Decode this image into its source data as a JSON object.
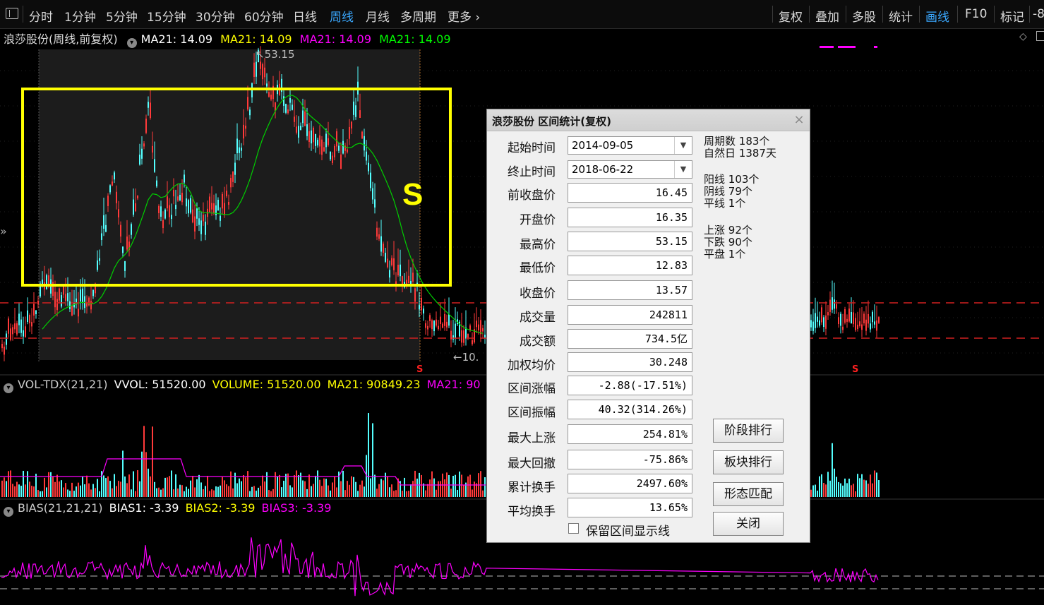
{
  "toolbar": {
    "left_items": [
      {
        "label": "分时",
        "active": false
      },
      {
        "label": "1分钟",
        "active": false
      },
      {
        "label": "5分钟",
        "active": false
      },
      {
        "label": "15分钟",
        "active": false
      },
      {
        "label": "30分钟",
        "active": false
      },
      {
        "label": "60分钟",
        "active": false
      },
      {
        "label": "日线",
        "active": false
      },
      {
        "label": "周线",
        "active": true
      },
      {
        "label": "月线",
        "active": false
      },
      {
        "label": "多周期",
        "active": false
      },
      {
        "label": "更多",
        "active": false
      }
    ],
    "right_items": [
      {
        "label": "复权",
        "active": false
      },
      {
        "label": "叠加",
        "active": false
      },
      {
        "label": "多股",
        "active": false
      },
      {
        "label": "统计",
        "active": false
      },
      {
        "label": "画线",
        "active": true
      },
      {
        "label": "F10",
        "active": false
      },
      {
        "label": "标记",
        "active": false
      },
      {
        "label": "-8",
        "active": false
      }
    ]
  },
  "price_panel": {
    "title": "浪莎股份(周线,前复权)",
    "ma_items": [
      {
        "label": "MA21: 14.09",
        "color": "#ffffff"
      },
      {
        "label": "MA21: 14.09",
        "color": "#ffff00"
      },
      {
        "label": "MA21: 14.09",
        "color": "#ff00ff"
      },
      {
        "label": "MA21: 14.09",
        "color": "#00ff00"
      }
    ],
    "high_marker": "53.15",
    "low_marker": "10.",
    "annotation_letter": "S",
    "side_arrow": "»",
    "s_signal": "S"
  },
  "volume_panel": {
    "items": [
      {
        "label": "VOL-TDX(21,21)",
        "color": "#cccccc"
      },
      {
        "label": "VVOL: 51520.00",
        "color": "#ffffff"
      },
      {
        "label": "VOLUME: 51520.00",
        "color": "#ffff00"
      },
      {
        "label": "MA21: 90849.23",
        "color": "#ffff00"
      },
      {
        "label": "MA21: 90",
        "color": "#ff00ff"
      }
    ]
  },
  "bias_panel": {
    "items": [
      {
        "label": "BIAS(21,21,21)",
        "color": "#cccccc"
      },
      {
        "label": "BIAS1: -3.39",
        "color": "#ffffff"
      },
      {
        "label": "BIAS2: -3.39",
        "color": "#ffff00"
      },
      {
        "label": "BIAS3: -3.39",
        "color": "#ff00ff"
      }
    ]
  },
  "colors": {
    "up": "#ff3a3a",
    "down": "#54ffff",
    "ma": "#00d000",
    "volma": "#ff00ff",
    "box": "#ffff00",
    "dash": "#d02020"
  },
  "dialog": {
    "title": "浪莎股份 区间统计(复权)",
    "close": "×",
    "start_label": "起始时间",
    "start_value": "2014-09-05",
    "end_label": "终止时间",
    "end_value": "2018-06-22",
    "rows": [
      {
        "label": "前收盘价",
        "value": "16.45"
      },
      {
        "label": "开盘价",
        "value": "16.35"
      },
      {
        "label": "最高价",
        "value": "53.15"
      },
      {
        "label": "最低价",
        "value": "12.83"
      },
      {
        "label": "收盘价",
        "value": "13.57"
      },
      {
        "label": "成交量",
        "value": "242811"
      },
      {
        "label": "成交额",
        "value": "734.5亿"
      },
      {
        "label": "加权均价",
        "value": "30.248"
      },
      {
        "label": "区间涨幅",
        "value": "-2.88(-17.51%)"
      },
      {
        "label": "区间振幅",
        "value": "40.32(314.26%)"
      },
      {
        "label": "最大上涨",
        "value": "254.81%"
      },
      {
        "label": "最大回撤",
        "value": "-75.86%"
      },
      {
        "label": "累计换手",
        "value": "2497.60%"
      },
      {
        "label": "平均换手",
        "value": "13.65%"
      }
    ],
    "stats": [
      {
        "label": "周期数",
        "value": "183个"
      },
      {
        "label": "自然日",
        "value": "1387天"
      },
      {
        "label": "阳线",
        "value": "103个"
      },
      {
        "label": "阴线",
        "value": "79个"
      },
      {
        "label": "平线",
        "value": "1个"
      },
      {
        "label": "上涨",
        "value": "92个"
      },
      {
        "label": "下跌",
        "value": "90个"
      },
      {
        "label": "平盘",
        "value": "1个"
      }
    ],
    "buttons": [
      "阶段排行",
      "板块排行",
      "形态匹配",
      "关闭"
    ],
    "keep_label": "保留区间显示线"
  }
}
